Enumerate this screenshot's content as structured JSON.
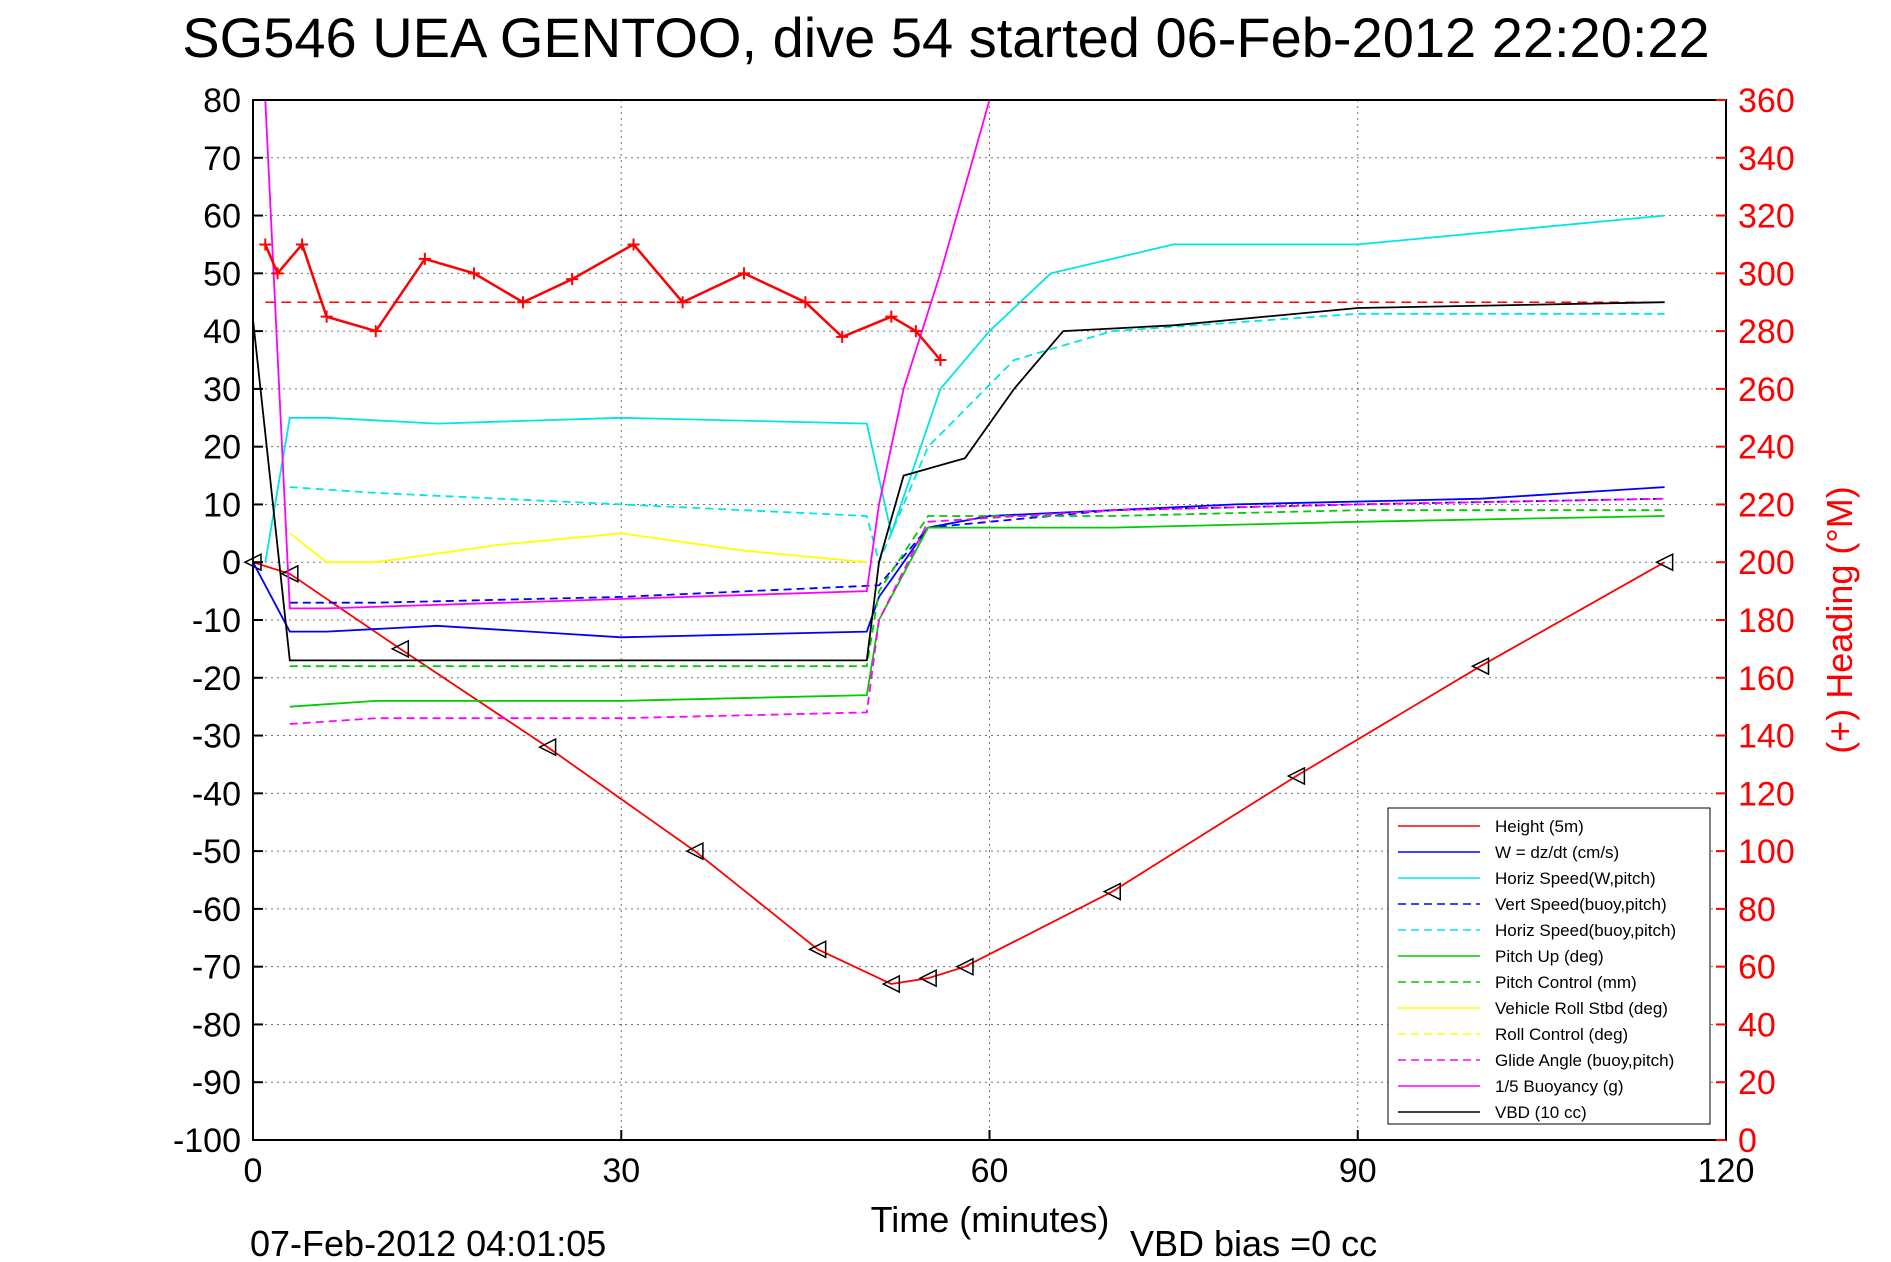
{
  "title": "SG546 UEA GENTOO, dive 54 started 06-Feb-2012 22:20:22",
  "footer": {
    "end_time": "07-Feb-2012 04:01:05",
    "vbd_bias": "VBD bias =0 cc"
  },
  "colors": {
    "height": "#ff0000",
    "w": "#0000ff",
    "horiz": "#00e5e5",
    "pitch": "#00cc00",
    "roll": "#ffff00",
    "glide": "#ff00ff",
    "vbd": "#000000",
    "heading": "#ff0000"
  },
  "chart_data": {
    "type": "line",
    "title": "SG546 UEA GENTOO, dive 54 started 06-Feb-2012 22:20:22",
    "xlabel": "Time (minutes)",
    "ylabel_left": "",
    "ylabel_right": "(+) Heading (°M)",
    "xlim": [
      0,
      120
    ],
    "ylim_left": [
      -100,
      80
    ],
    "ylim_right": [
      0,
      360
    ],
    "grid": true,
    "legend_position": "bottom-right",
    "x_ticks": [
      "0",
      "30",
      "60",
      "90",
      "120"
    ],
    "y_ticks_left": [
      "80",
      "70",
      "60",
      "50",
      "40",
      "30",
      "20",
      "10",
      "0",
      "-10",
      "-20",
      "-30",
      "-40",
      "-50",
      "-60",
      "-70",
      "-80",
      "-90",
      "-100"
    ],
    "y_ticks_right": [
      "360",
      "340",
      "320",
      "300",
      "280",
      "260",
      "240",
      "220",
      "200",
      "180",
      "160",
      "140",
      "120",
      "100",
      "80",
      "60",
      "40",
      "20",
      "0"
    ],
    "legend": [
      {
        "label": "Height (5m)",
        "color": "#ff0000",
        "dash": false
      },
      {
        "label": "W = dz/dt (cm/s)",
        "color": "#0000ff",
        "dash": false
      },
      {
        "label": "Horiz Speed(W,pitch)",
        "color": "#00e5e5",
        "dash": false
      },
      {
        "label": "Vert Speed(buoy,pitch)",
        "color": "#0000ff",
        "dash": true
      },
      {
        "label": "Horiz Speed(buoy,pitch)",
        "color": "#00e5e5",
        "dash": true
      },
      {
        "label": "Pitch Up (deg)",
        "color": "#00cc00",
        "dash": false
      },
      {
        "label": "Pitch Control (mm)",
        "color": "#00cc00",
        "dash": true
      },
      {
        "label": "Vehicle Roll Stbd (deg)",
        "color": "#ffff00",
        "dash": false
      },
      {
        "label": "Roll Control (deg)",
        "color": "#ffff00",
        "dash": true
      },
      {
        "label": "Glide Angle (buoy,pitch)",
        "color": "#ff00ff",
        "dash": true
      },
      {
        "label": "1/5 Buoyancy (g)",
        "color": "#ff00ff",
        "dash": false
      },
      {
        "label": "VBD (10 cc)",
        "color": "#000000",
        "dash": false
      }
    ],
    "series": [
      {
        "name": "Height (5m)",
        "color": "#ff0000",
        "x": [
          0,
          3,
          12,
          24,
          36,
          46,
          52,
          55,
          58,
          70,
          85,
          100,
          115
        ],
        "y": [
          0,
          -2,
          -15,
          -32,
          -50,
          -67,
          -73,
          -72,
          -70,
          -57,
          -37,
          -18,
          0
        ]
      },
      {
        "name": "W = dz/dt (cm/s)",
        "color": "#0000ff",
        "x": [
          0,
          3,
          6,
          15,
          30,
          50,
          51,
          55,
          60,
          80,
          100,
          115
        ],
        "y": [
          0,
          -12,
          -12,
          -11,
          -13,
          -12,
          -6,
          6,
          8,
          10,
          11,
          13
        ]
      },
      {
        "name": "Horiz Speed(W,pitch)",
        "color": "#00e5e5",
        "x": [
          1,
          3,
          6,
          15,
          30,
          50,
          52,
          56,
          60,
          65,
          75,
          90,
          115
        ],
        "y": [
          0,
          25,
          25,
          24,
          25,
          24,
          5,
          30,
          40,
          50,
          55,
          55,
          60
        ]
      },
      {
        "name": "Vert Speed(buoy,pitch)",
        "color": "#0000ff",
        "x": [
          3,
          10,
          30,
          51,
          55,
          70,
          90,
          115
        ],
        "y": [
          -7,
          -7,
          -6,
          -4,
          6,
          9,
          10,
          11
        ]
      },
      {
        "name": "Horiz Speed(buoy,pitch)",
        "color": "#00e5e5",
        "x": [
          3,
          10,
          30,
          50,
          51,
          55,
          62,
          70,
          90,
          115
        ],
        "y": [
          13,
          12,
          10,
          8,
          0,
          20,
          35,
          40,
          43,
          43
        ]
      },
      {
        "name": "Pitch Up (deg)",
        "color": "#00cc00",
        "x": [
          3,
          10,
          30,
          50,
          51,
          55,
          70,
          90,
          115
        ],
        "y": [
          -25,
          -24,
          -24,
          -23,
          -10,
          6,
          6,
          7,
          8
        ]
      },
      {
        "name": "Pitch Control (mm)",
        "color": "#00cc00",
        "x": [
          3,
          10,
          30,
          50,
          51,
          55,
          70,
          90,
          115
        ],
        "y": [
          -18,
          -18,
          -18,
          -18,
          -5,
          8,
          8,
          9,
          9
        ]
      },
      {
        "name": "Vehicle Roll Stbd (deg)",
        "color": "#ffff00",
        "x": [
          3,
          6,
          10,
          20,
          30,
          40,
          50
        ],
        "y": [
          5,
          0,
          0,
          3,
          5,
          2,
          0
        ]
      },
      {
        "name": "Glide Angle (buoy,pitch)",
        "color": "#ff00ff",
        "x": [
          3,
          10,
          30,
          50,
          51,
          55,
          70,
          90,
          115
        ],
        "y": [
          -28,
          -27,
          -27,
          -26,
          -10,
          7,
          9,
          10,
          11
        ]
      },
      {
        "name": "1/5 Buoyancy (g)",
        "color": "#ff00ff",
        "x": [
          1,
          3,
          6,
          50,
          51,
          53,
          56,
          58,
          60
        ],
        "y": [
          80,
          -8,
          -8,
          -5,
          10,
          30,
          50,
          65,
          80
        ]
      },
      {
        "name": "VBD (10 cc)",
        "color": "#000000",
        "x": [
          0,
          3,
          6,
          50,
          51,
          53,
          58,
          62,
          66,
          75,
          90,
          115
        ],
        "y": [
          42,
          -17,
          -17,
          -17,
          0,
          15,
          18,
          30,
          40,
          41,
          44,
          45
        ]
      },
      {
        "name": "(+) Heading (°M)",
        "color": "#ff0000",
        "axis": "right",
        "x": [
          1,
          2,
          4,
          6,
          10,
          14,
          18,
          22,
          26,
          31,
          35,
          40,
          45,
          48,
          52,
          54,
          56
        ],
        "y": [
          310,
          300,
          310,
          285,
          280,
          305,
          300,
          290,
          298,
          310,
          290,
          300,
          290,
          278,
          285,
          280,
          270
        ]
      }
    ]
  }
}
